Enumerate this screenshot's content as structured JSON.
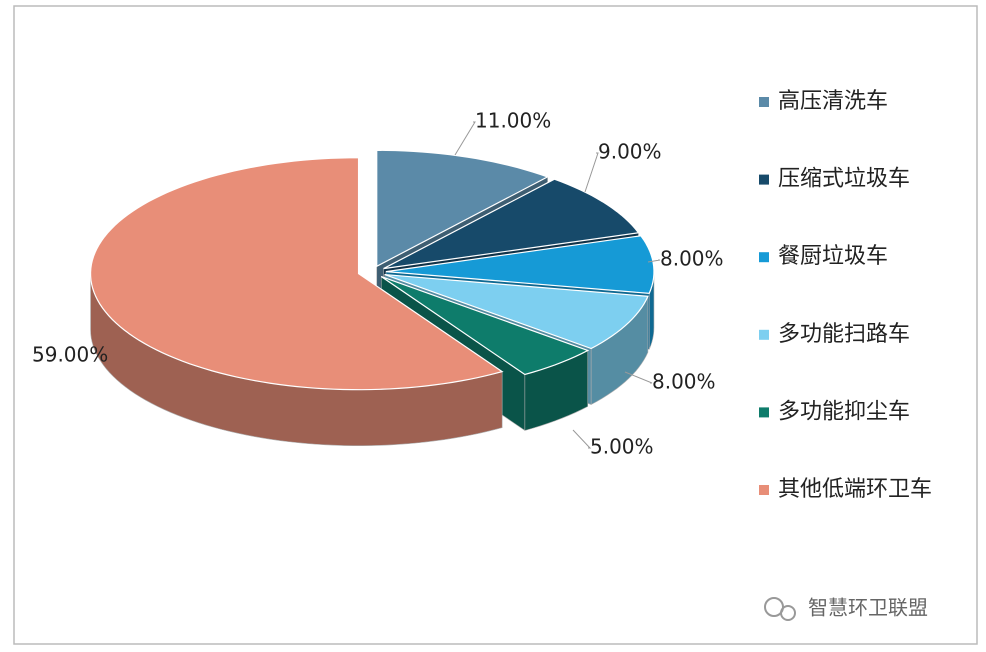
{
  "chart_data": {
    "type": "pie",
    "categories": [
      "高压清洗车",
      "压缩式垃圾车",
      "餐厨垃圾车",
      "多功能扫路车",
      "多功能抑尘车",
      "其他低端环卫车"
    ],
    "values": [
      11,
      9,
      8,
      8,
      5,
      59
    ],
    "value_labels": [
      "11.00%",
      "9.00%",
      "8.00%",
      "8.00%",
      "5.00%",
      "59.00%"
    ],
    "colors": [
      "#5b8aa8",
      "#174a6a",
      "#169ad6",
      "#7dcff0",
      "#0e7c6b",
      "#e88e78"
    ],
    "legend": "right",
    "watermark": "智慧环卫联盟"
  }
}
